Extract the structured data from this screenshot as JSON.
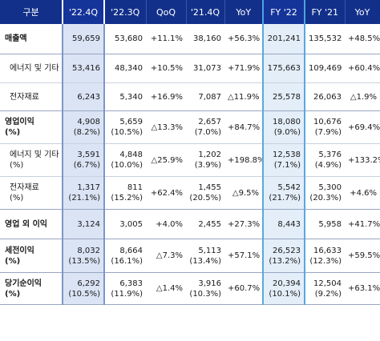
{
  "headers": [
    "구분",
    "'22.4Q",
    "'22.3Q",
    "QoQ",
    "'21.4Q",
    "YoY",
    "FY '22",
    "FY '21",
    "YoY"
  ],
  "rows": [
    {
      "label": [
        "매출액"
      ],
      "cells": [
        [
          "59,659"
        ],
        [
          "53,680"
        ],
        [
          "+11.1%"
        ],
        [
          "38,160"
        ],
        [
          "+56.3%"
        ],
        [
          "201,241"
        ],
        [
          "135,532"
        ],
        [
          "+48.5%"
        ]
      ]
    },
    {
      "label": [
        "에너지 및 기타"
      ],
      "cells": [
        [
          "53,416"
        ],
        [
          "48,340"
        ],
        [
          "+10.5%"
        ],
        [
          "31,073"
        ],
        [
          "+71.9%"
        ],
        [
          "175,663"
        ],
        [
          "109,469"
        ],
        [
          "+60.4%"
        ]
      ]
    },
    {
      "label": [
        "전자재료"
      ],
      "cells": [
        [
          "6,243"
        ],
        [
          "5,340"
        ],
        [
          "+16.9%"
        ],
        [
          "7,087"
        ],
        [
          "△11.9%"
        ],
        [
          "25,578"
        ],
        [
          "26,063"
        ],
        [
          "△1.9%"
        ]
      ]
    },
    {
      "label": [
        "영업이익",
        "(%)"
      ],
      "cells": [
        [
          "4,908",
          "(8.2%)"
        ],
        [
          "5,659",
          "(10.5%)"
        ],
        [
          "△13.3%"
        ],
        [
          "2,657",
          "(7.0%)"
        ],
        [
          "+84.7%"
        ],
        [
          "18,080",
          "(9.0%)"
        ],
        [
          "10,676",
          "(7.9%)"
        ],
        [
          "+69.4%"
        ]
      ]
    },
    {
      "label": [
        "에너지 및 기타",
        "(%)"
      ],
      "cells": [
        [
          "3,591",
          "(6.7%)"
        ],
        [
          "4,848",
          "(10.0%)"
        ],
        [
          "△25.9%"
        ],
        [
          "1,202",
          "(3.9%)"
        ],
        [
          "+198.8%"
        ],
        [
          "12,538",
          "(7.1%)"
        ],
        [
          "5,376",
          "(4.9%)"
        ],
        [
          "+133.2%"
        ]
      ]
    },
    {
      "label": [
        "전자재료",
        "(%)"
      ],
      "cells": [
        [
          "1,317",
          "(21.1%)"
        ],
        [
          "811",
          "(15.2%)"
        ],
        [
          "+62.4%"
        ],
        [
          "1,455",
          "(20.5%)"
        ],
        [
          "△9.5%"
        ],
        [
          "5,542",
          "(21.7%)"
        ],
        [
          "5,300",
          "(20.3%)"
        ],
        [
          "+4.6%"
        ]
      ]
    },
    {
      "label": [
        "영업 외 이익"
      ],
      "cells": [
        [
          "3,124"
        ],
        [
          "3,005"
        ],
        [
          "+4.0%"
        ],
        [
          "2,455"
        ],
        [
          "+27.3%"
        ],
        [
          "8,443"
        ],
        [
          "5,958"
        ],
        [
          "+41.7%"
        ]
      ]
    },
    {
      "label": [
        "세전이익",
        "(%)"
      ],
      "cells": [
        [
          "8,032",
          "(13.5%)"
        ],
        [
          "8,664",
          "(16.1%)"
        ],
        [
          "△7.3%"
        ],
        [
          "5,113",
          "(13.4%)"
        ],
        [
          "+57.1%"
        ],
        [
          "26,523",
          "(13.2%)"
        ],
        [
          "16,633",
          "(12.3%)"
        ],
        [
          "+59.5%"
        ]
      ]
    },
    {
      "label": [
        "당기순이익",
        "(%)"
      ],
      "cells": [
        [
          "6,292",
          "(10.5%)"
        ],
        [
          "6,383",
          "(11.9%)"
        ],
        [
          "△1.4%"
        ],
        [
          "3,916",
          "(10.3%)"
        ],
        [
          "+60.7%"
        ],
        [
          "20,394",
          "(10.1%)"
        ],
        [
          "12,504",
          "(9.2%)"
        ],
        [
          "+63.1%"
        ]
      ]
    }
  ],
  "colors": {
    "header_bg": "#12308a",
    "q4_highlight": "#dbe4f5",
    "fy_highlight": "#e3eef8"
  }
}
